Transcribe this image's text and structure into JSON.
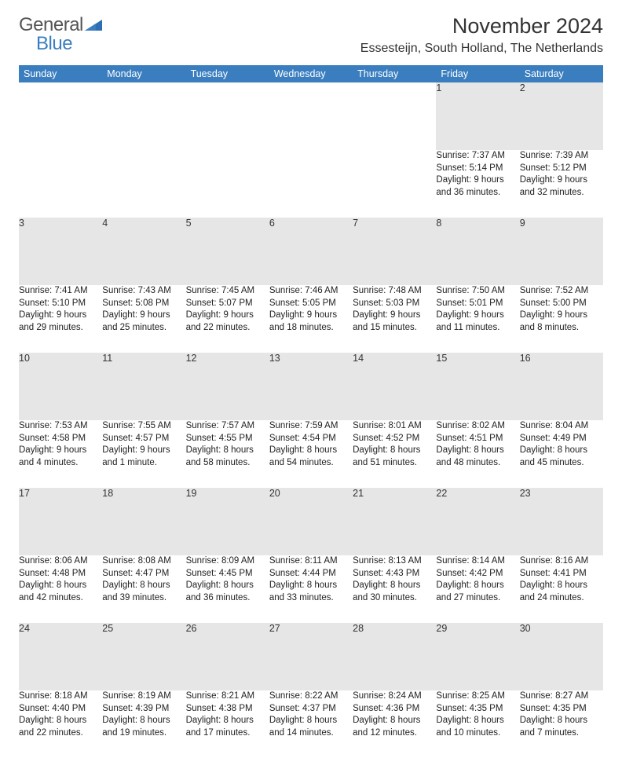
{
  "brand": {
    "general": "General",
    "blue": "Blue"
  },
  "title": "November 2024",
  "location": "Essesteijn, South Holland, The Netherlands",
  "colors": {
    "header_bg": "#3a7ebf",
    "daynum_bg": "#e6e6e6"
  },
  "weekdays": [
    "Sunday",
    "Monday",
    "Tuesday",
    "Wednesday",
    "Thursday",
    "Friday",
    "Saturday"
  ],
  "weeks": [
    {
      "nums": [
        "",
        "",
        "",
        "",
        "",
        "1",
        "2"
      ],
      "cells": [
        "",
        "",
        "",
        "",
        "",
        "Sunrise: 7:37 AM\nSunset: 5:14 PM\nDaylight: 9 hours and 36 minutes.",
        "Sunrise: 7:39 AM\nSunset: 5:12 PM\nDaylight: 9 hours and 32 minutes."
      ]
    },
    {
      "nums": [
        "3",
        "4",
        "5",
        "6",
        "7",
        "8",
        "9"
      ],
      "cells": [
        "Sunrise: 7:41 AM\nSunset: 5:10 PM\nDaylight: 9 hours and 29 minutes.",
        "Sunrise: 7:43 AM\nSunset: 5:08 PM\nDaylight: 9 hours and 25 minutes.",
        "Sunrise: 7:45 AM\nSunset: 5:07 PM\nDaylight: 9 hours and 22 minutes.",
        "Sunrise: 7:46 AM\nSunset: 5:05 PM\nDaylight: 9 hours and 18 minutes.",
        "Sunrise: 7:48 AM\nSunset: 5:03 PM\nDaylight: 9 hours and 15 minutes.",
        "Sunrise: 7:50 AM\nSunset: 5:01 PM\nDaylight: 9 hours and 11 minutes.",
        "Sunrise: 7:52 AM\nSunset: 5:00 PM\nDaylight: 9 hours and 8 minutes."
      ]
    },
    {
      "nums": [
        "10",
        "11",
        "12",
        "13",
        "14",
        "15",
        "16"
      ],
      "cells": [
        "Sunrise: 7:53 AM\nSunset: 4:58 PM\nDaylight: 9 hours and 4 minutes.",
        "Sunrise: 7:55 AM\nSunset: 4:57 PM\nDaylight: 9 hours and 1 minute.",
        "Sunrise: 7:57 AM\nSunset: 4:55 PM\nDaylight: 8 hours and 58 minutes.",
        "Sunrise: 7:59 AM\nSunset: 4:54 PM\nDaylight: 8 hours and 54 minutes.",
        "Sunrise: 8:01 AM\nSunset: 4:52 PM\nDaylight: 8 hours and 51 minutes.",
        "Sunrise: 8:02 AM\nSunset: 4:51 PM\nDaylight: 8 hours and 48 minutes.",
        "Sunrise: 8:04 AM\nSunset: 4:49 PM\nDaylight: 8 hours and 45 minutes."
      ]
    },
    {
      "nums": [
        "17",
        "18",
        "19",
        "20",
        "21",
        "22",
        "23"
      ],
      "cells": [
        "Sunrise: 8:06 AM\nSunset: 4:48 PM\nDaylight: 8 hours and 42 minutes.",
        "Sunrise: 8:08 AM\nSunset: 4:47 PM\nDaylight: 8 hours and 39 minutes.",
        "Sunrise: 8:09 AM\nSunset: 4:45 PM\nDaylight: 8 hours and 36 minutes.",
        "Sunrise: 8:11 AM\nSunset: 4:44 PM\nDaylight: 8 hours and 33 minutes.",
        "Sunrise: 8:13 AM\nSunset: 4:43 PM\nDaylight: 8 hours and 30 minutes.",
        "Sunrise: 8:14 AM\nSunset: 4:42 PM\nDaylight: 8 hours and 27 minutes.",
        "Sunrise: 8:16 AM\nSunset: 4:41 PM\nDaylight: 8 hours and 24 minutes."
      ]
    },
    {
      "nums": [
        "24",
        "25",
        "26",
        "27",
        "28",
        "29",
        "30"
      ],
      "cells": [
        "Sunrise: 8:18 AM\nSunset: 4:40 PM\nDaylight: 8 hours and 22 minutes.",
        "Sunrise: 8:19 AM\nSunset: 4:39 PM\nDaylight: 8 hours and 19 minutes.",
        "Sunrise: 8:21 AM\nSunset: 4:38 PM\nDaylight: 8 hours and 17 minutes.",
        "Sunrise: 8:22 AM\nSunset: 4:37 PM\nDaylight: 8 hours and 14 minutes.",
        "Sunrise: 8:24 AM\nSunset: 4:36 PM\nDaylight: 8 hours and 12 minutes.",
        "Sunrise: 8:25 AM\nSunset: 4:35 PM\nDaylight: 8 hours and 10 minutes.",
        "Sunrise: 8:27 AM\nSunset: 4:35 PM\nDaylight: 8 hours and 7 minutes."
      ]
    }
  ]
}
